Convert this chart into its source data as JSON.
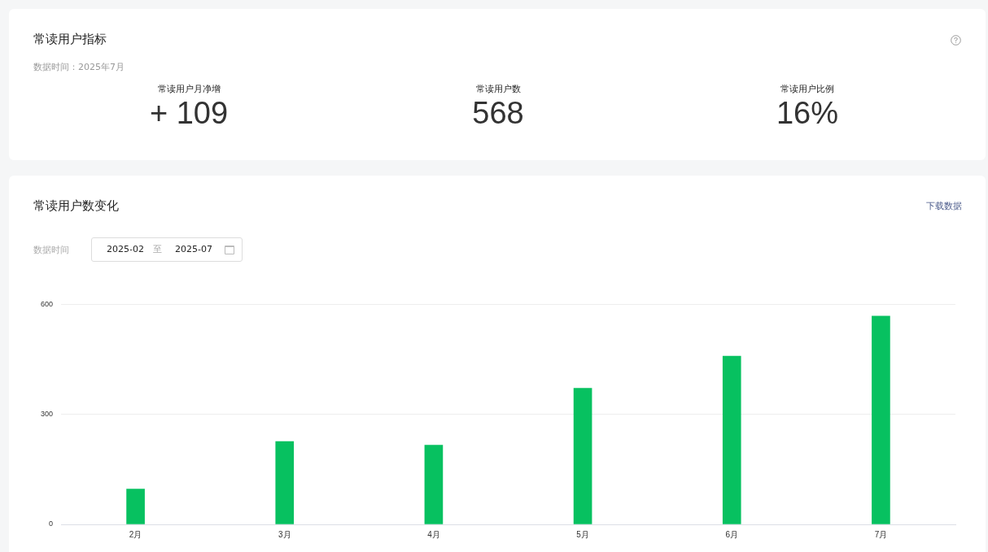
{
  "chart_data": [
    {
      "type": "other",
      "title": "常读用户指标",
      "subtitle": "数据时间：2025年7月",
      "categories": [
        "常读用户月净增",
        "常读用户数",
        "常读用户比例"
      ],
      "value_labels": [
        "+ 109",
        "568",
        "16%"
      ]
    },
    {
      "type": "bar",
      "title": "常读用户数变化",
      "annotations": [
        "下载数据",
        "数据时间",
        "2025-02",
        "至",
        "2025-07"
      ],
      "categories": [
        "2月",
        "3月",
        "4月",
        "5月",
        "6月",
        "7月"
      ],
      "values": [
        96,
        226,
        216,
        371,
        459,
        568
      ],
      "color": "#07c160",
      "ylim": [
        0,
        600
      ],
      "yticks": [
        0,
        300,
        600
      ],
      "grid": "y",
      "legend": false
    }
  ]
}
